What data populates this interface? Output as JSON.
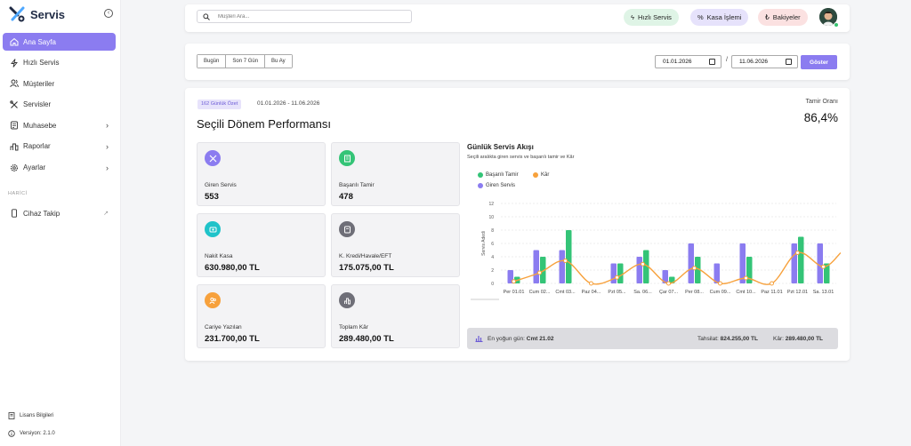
{
  "brand": {
    "name": "Servis"
  },
  "sidebar": {
    "items": [
      {
        "label": "Ana Sayfa",
        "icon": "home-icon"
      },
      {
        "label": "Hızlı Servis",
        "icon": "bolt-icon"
      },
      {
        "label": "Müşteriler",
        "icon": "users-icon"
      },
      {
        "label": "Servisler",
        "icon": "tools-icon"
      },
      {
        "label": "Muhasebe",
        "icon": "wallet-icon"
      },
      {
        "label": "Raporlar",
        "icon": "chart-icon"
      },
      {
        "label": "Ayarlar",
        "icon": "gear-icon"
      }
    ],
    "section": "HARİCİ",
    "external": {
      "label": "Cihaz Takip",
      "icon": "device-icon"
    },
    "license": "Lisans Bilgileri",
    "version": "Versiyon: 2.1.0"
  },
  "header": {
    "search_placeholder": "Müşteri Ara...",
    "quick_service": "Hızlı Servis",
    "cash_op": "Kasa İşlemi",
    "balances": "Bakiyeler"
  },
  "filters": {
    "today": "Bugün",
    "last7": "Son 7 Gün",
    "this_month": "Bu Ay",
    "from": "01.01.2026",
    "to": "11.06.2026",
    "separator": "/",
    "show": "Göster"
  },
  "summary": {
    "badge": "162 Günlük Özet",
    "range": "01.01.2026 - 11.06.2026",
    "title": "Seçili Dönem Performansı",
    "repair_rate_label": "Tamir Oranı",
    "repair_rate": "86,4%"
  },
  "stats": [
    {
      "label": "Giren Servis",
      "value": "553",
      "icon": "wrench-icon",
      "color": "#8b7cf0"
    },
    {
      "label": "Başarılı Tamir",
      "value": "478",
      "icon": "receipt-icon",
      "color": "#34c477"
    },
    {
      "label": "Nakit Kasa",
      "value": "630.980,00 TL",
      "icon": "cash-icon",
      "color": "#1fc3c9"
    },
    {
      "label": "K. Kredi/Havale/EFT",
      "value": "175.075,00 TL",
      "icon": "card-icon",
      "color": "#6f6f78"
    },
    {
      "label": "Cariye Yazılan",
      "value": "231.700,00 TL",
      "icon": "people-icon",
      "color": "#f7a13c"
    },
    {
      "label": "Toplam Kâr",
      "value": "289.480,00 TL",
      "icon": "bar-chart-icon",
      "color": "#6f6f78"
    }
  ],
  "chart": {
    "title": "Günlük Servis Akışı",
    "subtitle": "Seçili aralıkta giren servis ve başarılı tamir ve Kâr",
    "legend": {
      "green": "Başarılı Tamir",
      "orange": "Kâr",
      "purple": "Giren Servis"
    },
    "peak_label": "En yoğun gün:",
    "peak_value": "Cmt 21.02",
    "income_label": "Tahsilat:",
    "income_value": "824.255,00 TL",
    "profit_label": "Kâr:",
    "profit_value": "289.480,00 TL"
  },
  "chart_data": {
    "type": "bar",
    "ylabel": "Servis Adedi",
    "ylim": [
      0,
      12
    ],
    "yticks": [
      "0",
      "2",
      "4",
      "6",
      "8",
      "10",
      "12"
    ],
    "categories": [
      "Per 01.01",
      "Cum 02...",
      "Cmt 03...",
      "Paz 04...",
      "Pzt 05...",
      "Sa. 06...",
      "Çar 07...",
      "Per 08...",
      "Cum 09...",
      "Cmt 10...",
      "Paz 11.01",
      "Pzt 12.01",
      "Sa. 13.01"
    ],
    "series": [
      {
        "name": "Giren Servis",
        "type": "bar",
        "color": "#8b7cf0",
        "values": [
          2,
          5,
          5,
          0,
          3,
          4,
          2,
          6,
          3,
          6,
          0,
          6,
          6
        ]
      },
      {
        "name": "Başarılı Tamir",
        "type": "bar",
        "color": "#34c477",
        "values": [
          1,
          4,
          8,
          0,
          3,
          5,
          1,
          4,
          0,
          4,
          0,
          7,
          3
        ]
      },
      {
        "name": "Kâr",
        "type": "line",
        "color": "#f7a13c",
        "values": [
          0.3,
          1.6,
          3.4,
          0,
          0.9,
          2.9,
          0,
          2.3,
          0,
          0.8,
          0,
          4.6,
          2.5
        ]
      }
    ]
  }
}
